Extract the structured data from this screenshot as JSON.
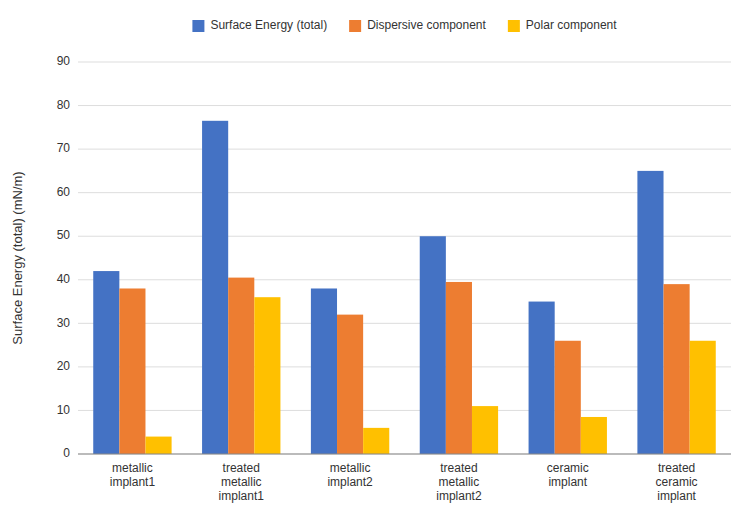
{
  "chart_data": {
    "type": "bar",
    "categories": [
      "metallic\nimplant1",
      "treated\nmetallic\nimplant1",
      "metallic\nimplant2",
      "treated\nmetallic\nimplant2",
      "ceramic\nimplant",
      "treated\nceramic\nimplant"
    ],
    "series": [
      {
        "name": "Surface Energy (total)",
        "color": "#4472C4",
        "values": [
          42,
          76.5,
          38,
          50,
          35,
          65
        ]
      },
      {
        "name": "Dispersive component",
        "color": "#ED7D31",
        "values": [
          38,
          40.5,
          32,
          39.5,
          26,
          39
        ]
      },
      {
        "name": "Polar component",
        "color": "#FFC000",
        "values": [
          4,
          36,
          6,
          11,
          8.5,
          26
        ]
      }
    ],
    "ylabel": "Surface Energy (total) (mN/m)",
    "ylim": [
      0,
      90
    ],
    "yticks": [
      0,
      10,
      20,
      30,
      40,
      50,
      60,
      70,
      80,
      90
    ],
    "grid": true,
    "legend": "top"
  }
}
